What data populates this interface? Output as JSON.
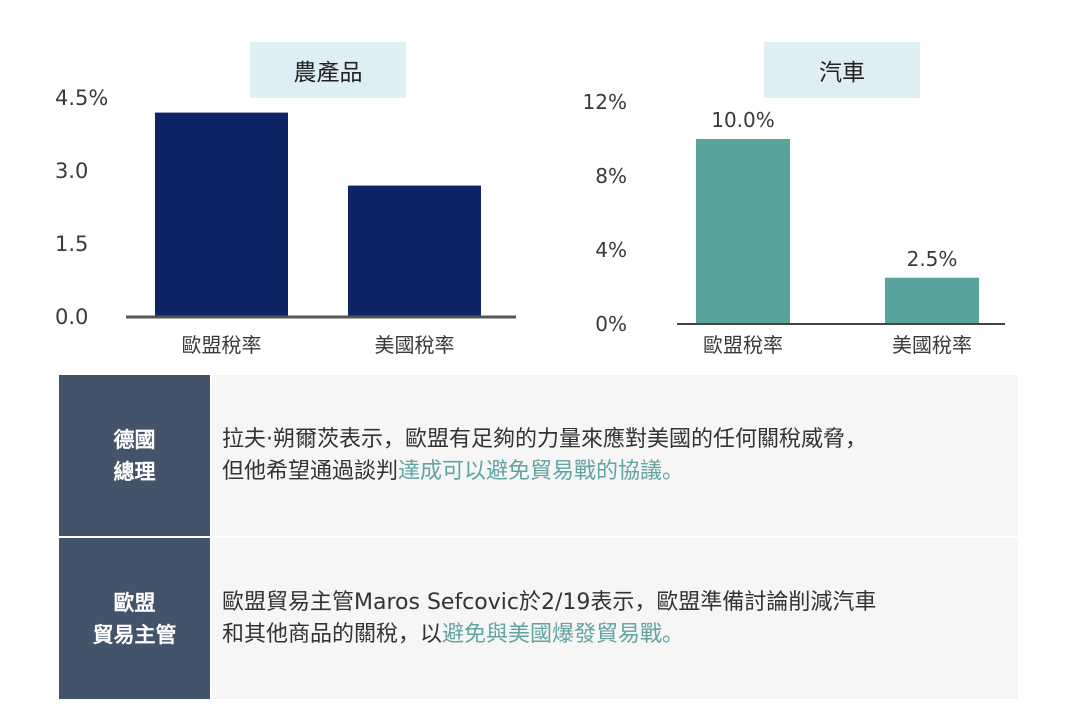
{
  "chart_data": [
    {
      "type": "bar",
      "title": "農產品",
      "categories": [
        "歐盟稅率",
        "美國稅率"
      ],
      "values": [
        4.2,
        2.7
      ],
      "ylim": [
        0,
        4.5
      ],
      "yticks": [
        "0.0",
        "1.5",
        "3.0",
        "4.5%"
      ],
      "data_labels": [],
      "color": "#0d2466",
      "grid": false
    },
    {
      "type": "bar",
      "title": "汽車",
      "categories": [
        "歐盟稅率",
        "美國稅率"
      ],
      "values": [
        10.0,
        2.5
      ],
      "ylim": [
        0,
        12
      ],
      "yticks": [
        "0%",
        "4%",
        "8%",
        "12%"
      ],
      "data_labels": [
        "10.0%",
        "2.5%"
      ],
      "color": "#58a39b",
      "grid": false
    }
  ],
  "table": {
    "rows": [
      {
        "label": [
          "德國",
          "總理"
        ],
        "lines": [
          [
            {
              "text": "拉夫·朔爾茨表示，歐盟有足夠的力量來應對美國的任何關稅威脅，",
              "hl": false
            }
          ],
          [
            {
              "text": "但他希望通過談判",
              "hl": false
            },
            {
              "text": "達成可以避免貿易戰的協議",
              "hl": true
            },
            {
              "text": "。",
              "hl": false
            }
          ]
        ]
      },
      {
        "label": [
          "歐盟",
          "貿易主管"
        ],
        "lines": [
          [
            {
              "text": "歐盟貿易主管Maros Sefcovic於2/19表示，歐盟準備討論削減汽車",
              "hl": false
            }
          ],
          [
            {
              "text": "和其他商品的關稅，以",
              "hl": false
            },
            {
              "text": "避免與美國爆發貿易戰",
              "hl": true
            },
            {
              "text": "。",
              "hl": false
            }
          ]
        ]
      }
    ]
  }
}
